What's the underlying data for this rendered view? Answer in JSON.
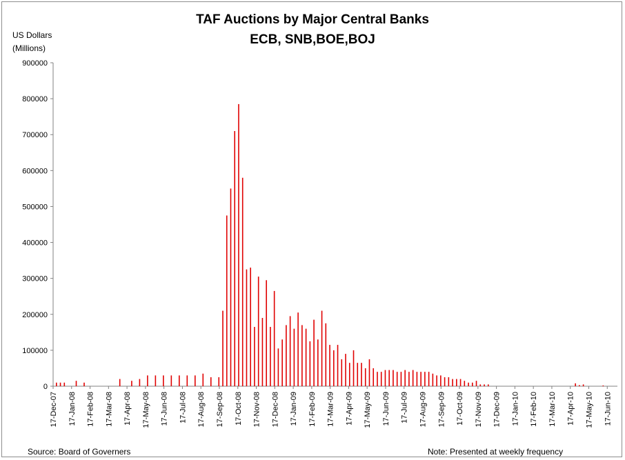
{
  "chart_data": {
    "type": "bar",
    "title": "TAF Auctions by Major Central Banks",
    "subtitle": "ECB, SNB,BOE,BOJ",
    "ylabel_line1": "US Dollars",
    "ylabel_line2": "(Millions)",
    "ylim": [
      0,
      900000
    ],
    "yticks": [
      "0",
      "100000",
      "200000",
      "300000",
      "400000",
      "500000",
      "600000",
      "700000",
      "800000",
      "900000"
    ],
    "xticks": [
      "17-Dec-07",
      "17-Jan-08",
      "17-Feb-08",
      "17-Mar-08",
      "17-Apr-08",
      "17-May-08",
      "17-Jun-08",
      "17-Jul-08",
      "17-Aug-08",
      "17-Sep-08",
      "17-Oct-08",
      "17-Nov-08",
      "17-Dec-08",
      "17-Jan-09",
      "17-Feb-09",
      "17-Mar-09",
      "17-Apr-09",
      "17-May-09",
      "17-Jun-09",
      "17-Jul-09",
      "17-Aug-09",
      "17-Sep-09",
      "17-Oct-09",
      "17-Nov-09",
      "17-Dec-09",
      "17-Jan-10",
      "17-Feb-10",
      "17-Mar-10",
      "17-Apr-10",
      "17-May-10",
      "17-Jun-10"
    ],
    "bar_color": "#e00000",
    "grid": false,
    "frequency": "weekly",
    "values": [
      10000,
      10000,
      10000,
      0,
      0,
      15000,
      0,
      10000,
      0,
      0,
      0,
      0,
      0,
      0,
      0,
      0,
      20000,
      0,
      0,
      15000,
      0,
      20000,
      0,
      30000,
      0,
      30000,
      0,
      30000,
      0,
      30000,
      0,
      30000,
      0,
      30000,
      0,
      30000,
      0,
      35000,
      0,
      25000,
      0,
      25000,
      210000,
      475000,
      550000,
      710000,
      785000,
      580000,
      325000,
      330000,
      165000,
      305000,
      190000,
      295000,
      165000,
      265000,
      105000,
      130000,
      170000,
      195000,
      160000,
      205000,
      170000,
      160000,
      125000,
      185000,
      130000,
      210000,
      175000,
      115000,
      100000,
      115000,
      75000,
      90000,
      65000,
      100000,
      65000,
      65000,
      50000,
      75000,
      50000,
      40000,
      40000,
      45000,
      45000,
      45000,
      40000,
      40000,
      45000,
      40000,
      45000,
      40000,
      40000,
      40000,
      40000,
      35000,
      30000,
      30000,
      25000,
      25000,
      20000,
      20000,
      20000,
      15000,
      10000,
      10000,
      15000,
      5000,
      5000,
      5000,
      0,
      0,
      0,
      0,
      0,
      0,
      0,
      0,
      0,
      0,
      0,
      0,
      0,
      0,
      0,
      0,
      0,
      0,
      0,
      0,
      0,
      8000,
      3000,
      5000,
      0,
      0,
      0,
      0,
      2000,
      0
    ]
  },
  "footer": {
    "source": "Source: Board of Governers",
    "note": "Note: Presented at weekly frequency"
  }
}
